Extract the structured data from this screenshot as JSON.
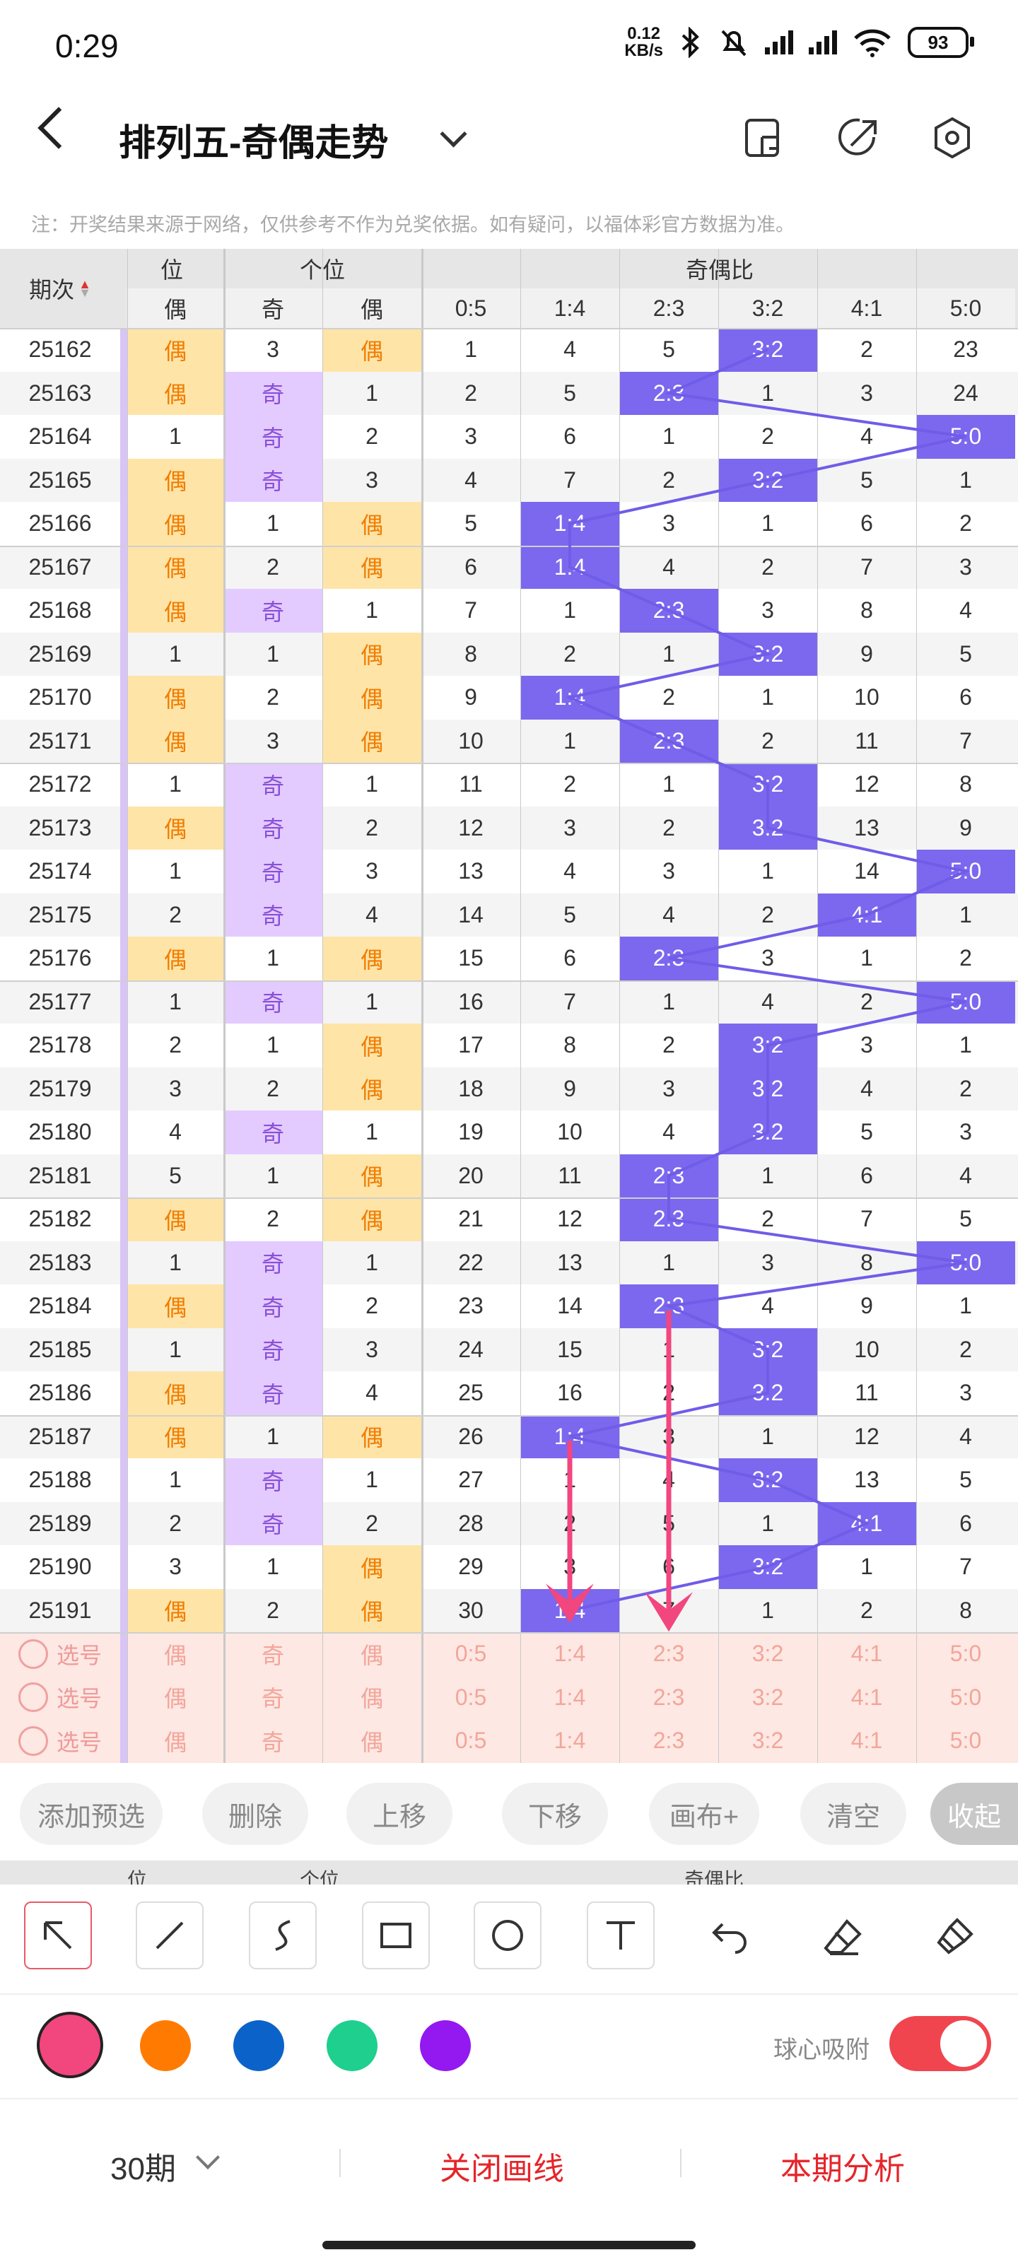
{
  "status_bar": {
    "time": "0:29",
    "net_speed_value": "0.12",
    "net_speed_unit": "KB/s",
    "battery": "93"
  },
  "header": {
    "title": "排列五-奇偶走势"
  },
  "notice": "注：开奖结果来源于网络，仅供参考不作为兑奖依据。如有疑问，以福体彩官方数据为准。",
  "table": {
    "header_top": {
      "period": "期次",
      "pos_partial": "位",
      "ge_wei": "个位",
      "ratio_group": "奇偶比"
    },
    "header_sub": {
      "prev_even": "偶",
      "odd": "奇",
      "even": "偶"
    },
    "ratio_labels": [
      "0:5",
      "1:4",
      "2:3",
      "3:2",
      "4:1",
      "5:0"
    ],
    "rows": [
      {
        "period": "25162",
        "c0": "偶",
        "c1": "3",
        "c2": "偶",
        "ratio": [
          "1",
          "4",
          "5",
          "3:2",
          "2",
          "23"
        ],
        "hit": 3
      },
      {
        "period": "25163",
        "c0": "偶",
        "c1": "奇",
        "c2": "1",
        "ratio": [
          "2",
          "5",
          "2:3",
          "1",
          "3",
          "24"
        ],
        "hit": 2
      },
      {
        "period": "25164",
        "c0": "1",
        "c1": "奇",
        "c2": "2",
        "ratio": [
          "3",
          "6",
          "1",
          "2",
          "4",
          "5:0"
        ],
        "hit": 5
      },
      {
        "period": "25165",
        "c0": "偶",
        "c1": "奇",
        "c2": "3",
        "ratio": [
          "4",
          "7",
          "2",
          "3:2",
          "5",
          "1"
        ],
        "hit": 3
      },
      {
        "period": "25166",
        "c0": "偶",
        "c1": "1",
        "c2": "偶",
        "ratio": [
          "5",
          "1:4",
          "3",
          "1",
          "6",
          "2"
        ],
        "hit": 1
      },
      {
        "period": "25167",
        "c0": "偶",
        "c1": "2",
        "c2": "偶",
        "ratio": [
          "6",
          "1:4",
          "4",
          "2",
          "7",
          "3"
        ],
        "hit": 1
      },
      {
        "period": "25168",
        "c0": "偶",
        "c1": "奇",
        "c2": "1",
        "ratio": [
          "7",
          "1",
          "2:3",
          "3",
          "8",
          "4"
        ],
        "hit": 2
      },
      {
        "period": "25169",
        "c0": "1",
        "c1": "1",
        "c2": "偶",
        "ratio": [
          "8",
          "2",
          "1",
          "3:2",
          "9",
          "5"
        ],
        "hit": 3
      },
      {
        "period": "25170",
        "c0": "偶",
        "c1": "2",
        "c2": "偶",
        "ratio": [
          "9",
          "1:4",
          "2",
          "1",
          "10",
          "6"
        ],
        "hit": 1
      },
      {
        "period": "25171",
        "c0": "偶",
        "c1": "3",
        "c2": "偶",
        "ratio": [
          "10",
          "1",
          "2:3",
          "2",
          "11",
          "7"
        ],
        "hit": 2
      },
      {
        "period": "25172",
        "c0": "1",
        "c1": "奇",
        "c2": "1",
        "ratio": [
          "11",
          "2",
          "1",
          "3:2",
          "12",
          "8"
        ],
        "hit": 3
      },
      {
        "period": "25173",
        "c0": "偶",
        "c1": "奇",
        "c2": "2",
        "ratio": [
          "12",
          "3",
          "2",
          "3:2",
          "13",
          "9"
        ],
        "hit": 3
      },
      {
        "period": "25174",
        "c0": "1",
        "c1": "奇",
        "c2": "3",
        "ratio": [
          "13",
          "4",
          "3",
          "1",
          "14",
          "5:0"
        ],
        "hit": 5
      },
      {
        "period": "25175",
        "c0": "2",
        "c1": "奇",
        "c2": "4",
        "ratio": [
          "14",
          "5",
          "4",
          "2",
          "4:1",
          "1"
        ],
        "hit": 4
      },
      {
        "period": "25176",
        "c0": "偶",
        "c1": "1",
        "c2": "偶",
        "ratio": [
          "15",
          "6",
          "2:3",
          "3",
          "1",
          "2"
        ],
        "hit": 2
      },
      {
        "period": "25177",
        "c0": "1",
        "c1": "奇",
        "c2": "1",
        "ratio": [
          "16",
          "7",
          "1",
          "4",
          "2",
          "5:0"
        ],
        "hit": 5
      },
      {
        "period": "25178",
        "c0": "2",
        "c1": "1",
        "c2": "偶",
        "ratio": [
          "17",
          "8",
          "2",
          "3:2",
          "3",
          "1"
        ],
        "hit": 3
      },
      {
        "period": "25179",
        "c0": "3",
        "c1": "2",
        "c2": "偶",
        "ratio": [
          "18",
          "9",
          "3",
          "3:2",
          "4",
          "2"
        ],
        "hit": 3
      },
      {
        "period": "25180",
        "c0": "4",
        "c1": "奇",
        "c2": "1",
        "ratio": [
          "19",
          "10",
          "4",
          "3:2",
          "5",
          "3"
        ],
        "hit": 3
      },
      {
        "period": "25181",
        "c0": "5",
        "c1": "1",
        "c2": "偶",
        "ratio": [
          "20",
          "11",
          "2:3",
          "1",
          "6",
          "4"
        ],
        "hit": 2
      },
      {
        "period": "25182",
        "c0": "偶",
        "c1": "2",
        "c2": "偶",
        "ratio": [
          "21",
          "12",
          "2:3",
          "2",
          "7",
          "5"
        ],
        "hit": 2
      },
      {
        "period": "25183",
        "c0": "1",
        "c1": "奇",
        "c2": "1",
        "ratio": [
          "22",
          "13",
          "1",
          "3",
          "8",
          "5:0"
        ],
        "hit": 5
      },
      {
        "period": "25184",
        "c0": "偶",
        "c1": "奇",
        "c2": "2",
        "ratio": [
          "23",
          "14",
          "2:3",
          "4",
          "9",
          "1"
        ],
        "hit": 2
      },
      {
        "period": "25185",
        "c0": "1",
        "c1": "奇",
        "c2": "3",
        "ratio": [
          "24",
          "15",
          "1",
          "3:2",
          "10",
          "2"
        ],
        "hit": 3
      },
      {
        "period": "25186",
        "c0": "偶",
        "c1": "奇",
        "c2": "4",
        "ratio": [
          "25",
          "16",
          "2",
          "3:2",
          "11",
          "3"
        ],
        "hit": 3
      },
      {
        "period": "25187",
        "c0": "偶",
        "c1": "1",
        "c2": "偶",
        "ratio": [
          "26",
          "1:4",
          "3",
          "1",
          "12",
          "4"
        ],
        "hit": 1
      },
      {
        "period": "25188",
        "c0": "1",
        "c1": "奇",
        "c2": "1",
        "ratio": [
          "27",
          "1",
          "4",
          "3:2",
          "13",
          "5"
        ],
        "hit": 3
      },
      {
        "period": "25189",
        "c0": "2",
        "c1": "奇",
        "c2": "2",
        "ratio": [
          "28",
          "2",
          "5",
          "1",
          "4:1",
          "6"
        ],
        "hit": 4
      },
      {
        "period": "25190",
        "c0": "3",
        "c1": "1",
        "c2": "偶",
        "ratio": [
          "29",
          "3",
          "6",
          "3:2",
          "1",
          "7"
        ],
        "hit": 3
      },
      {
        "period": "25191",
        "c0": "偶",
        "c1": "2",
        "c2": "偶",
        "ratio": [
          "30",
          "1:4",
          "7",
          "1",
          "2",
          "8"
        ],
        "hit": 1
      }
    ],
    "pick_rows": [
      {
        "label": "选号",
        "c0": "偶",
        "c1": "奇",
        "c2": "偶",
        "ratio": [
          "0:5",
          "1:4",
          "2:3",
          "3:2",
          "4:1",
          "5:0"
        ]
      },
      {
        "label": "选号",
        "c0": "偶",
        "c1": "奇",
        "c2": "偶",
        "ratio": [
          "0:5",
          "1:4",
          "2:3",
          "3:2",
          "4:1",
          "5:0"
        ]
      },
      {
        "label": "选号",
        "c0": "偶",
        "c1": "奇",
        "c2": "偶",
        "ratio": [
          "0:5",
          "1:4",
          "2:3",
          "3:2",
          "4:1",
          "5:0"
        ]
      }
    ]
  },
  "action_bar": {
    "add": "添加预选",
    "delete": "删除",
    "up": "上移",
    "down": "下移",
    "canvas": "画布+",
    "clear": "清空",
    "collapse": "收起"
  },
  "peek_header": {
    "pos": "位",
    "ge_wei": "个位",
    "ratio": "奇偶比"
  },
  "draw_tools": [
    "pointer-arrow-icon",
    "line-icon",
    "curve-icon",
    "rectangle-icon",
    "circle-icon",
    "text-icon",
    "undo-icon",
    "eraser-icon",
    "clear-brush-icon"
  ],
  "colors": {
    "pink": "#f2467f",
    "orange": "#ff7a00",
    "blue": "#0b63c9",
    "green": "#1ecf8e",
    "purple": "#9319f0",
    "hit_purple": "#7b68ee",
    "even_yellow": "#ffe4a8",
    "odd_lilac": "#e3cbff"
  },
  "snap": {
    "label": "球心吸附",
    "enabled": true
  },
  "footer": {
    "periods": "30期",
    "close_lines": "关闭画线",
    "analysis": "本期分析"
  }
}
